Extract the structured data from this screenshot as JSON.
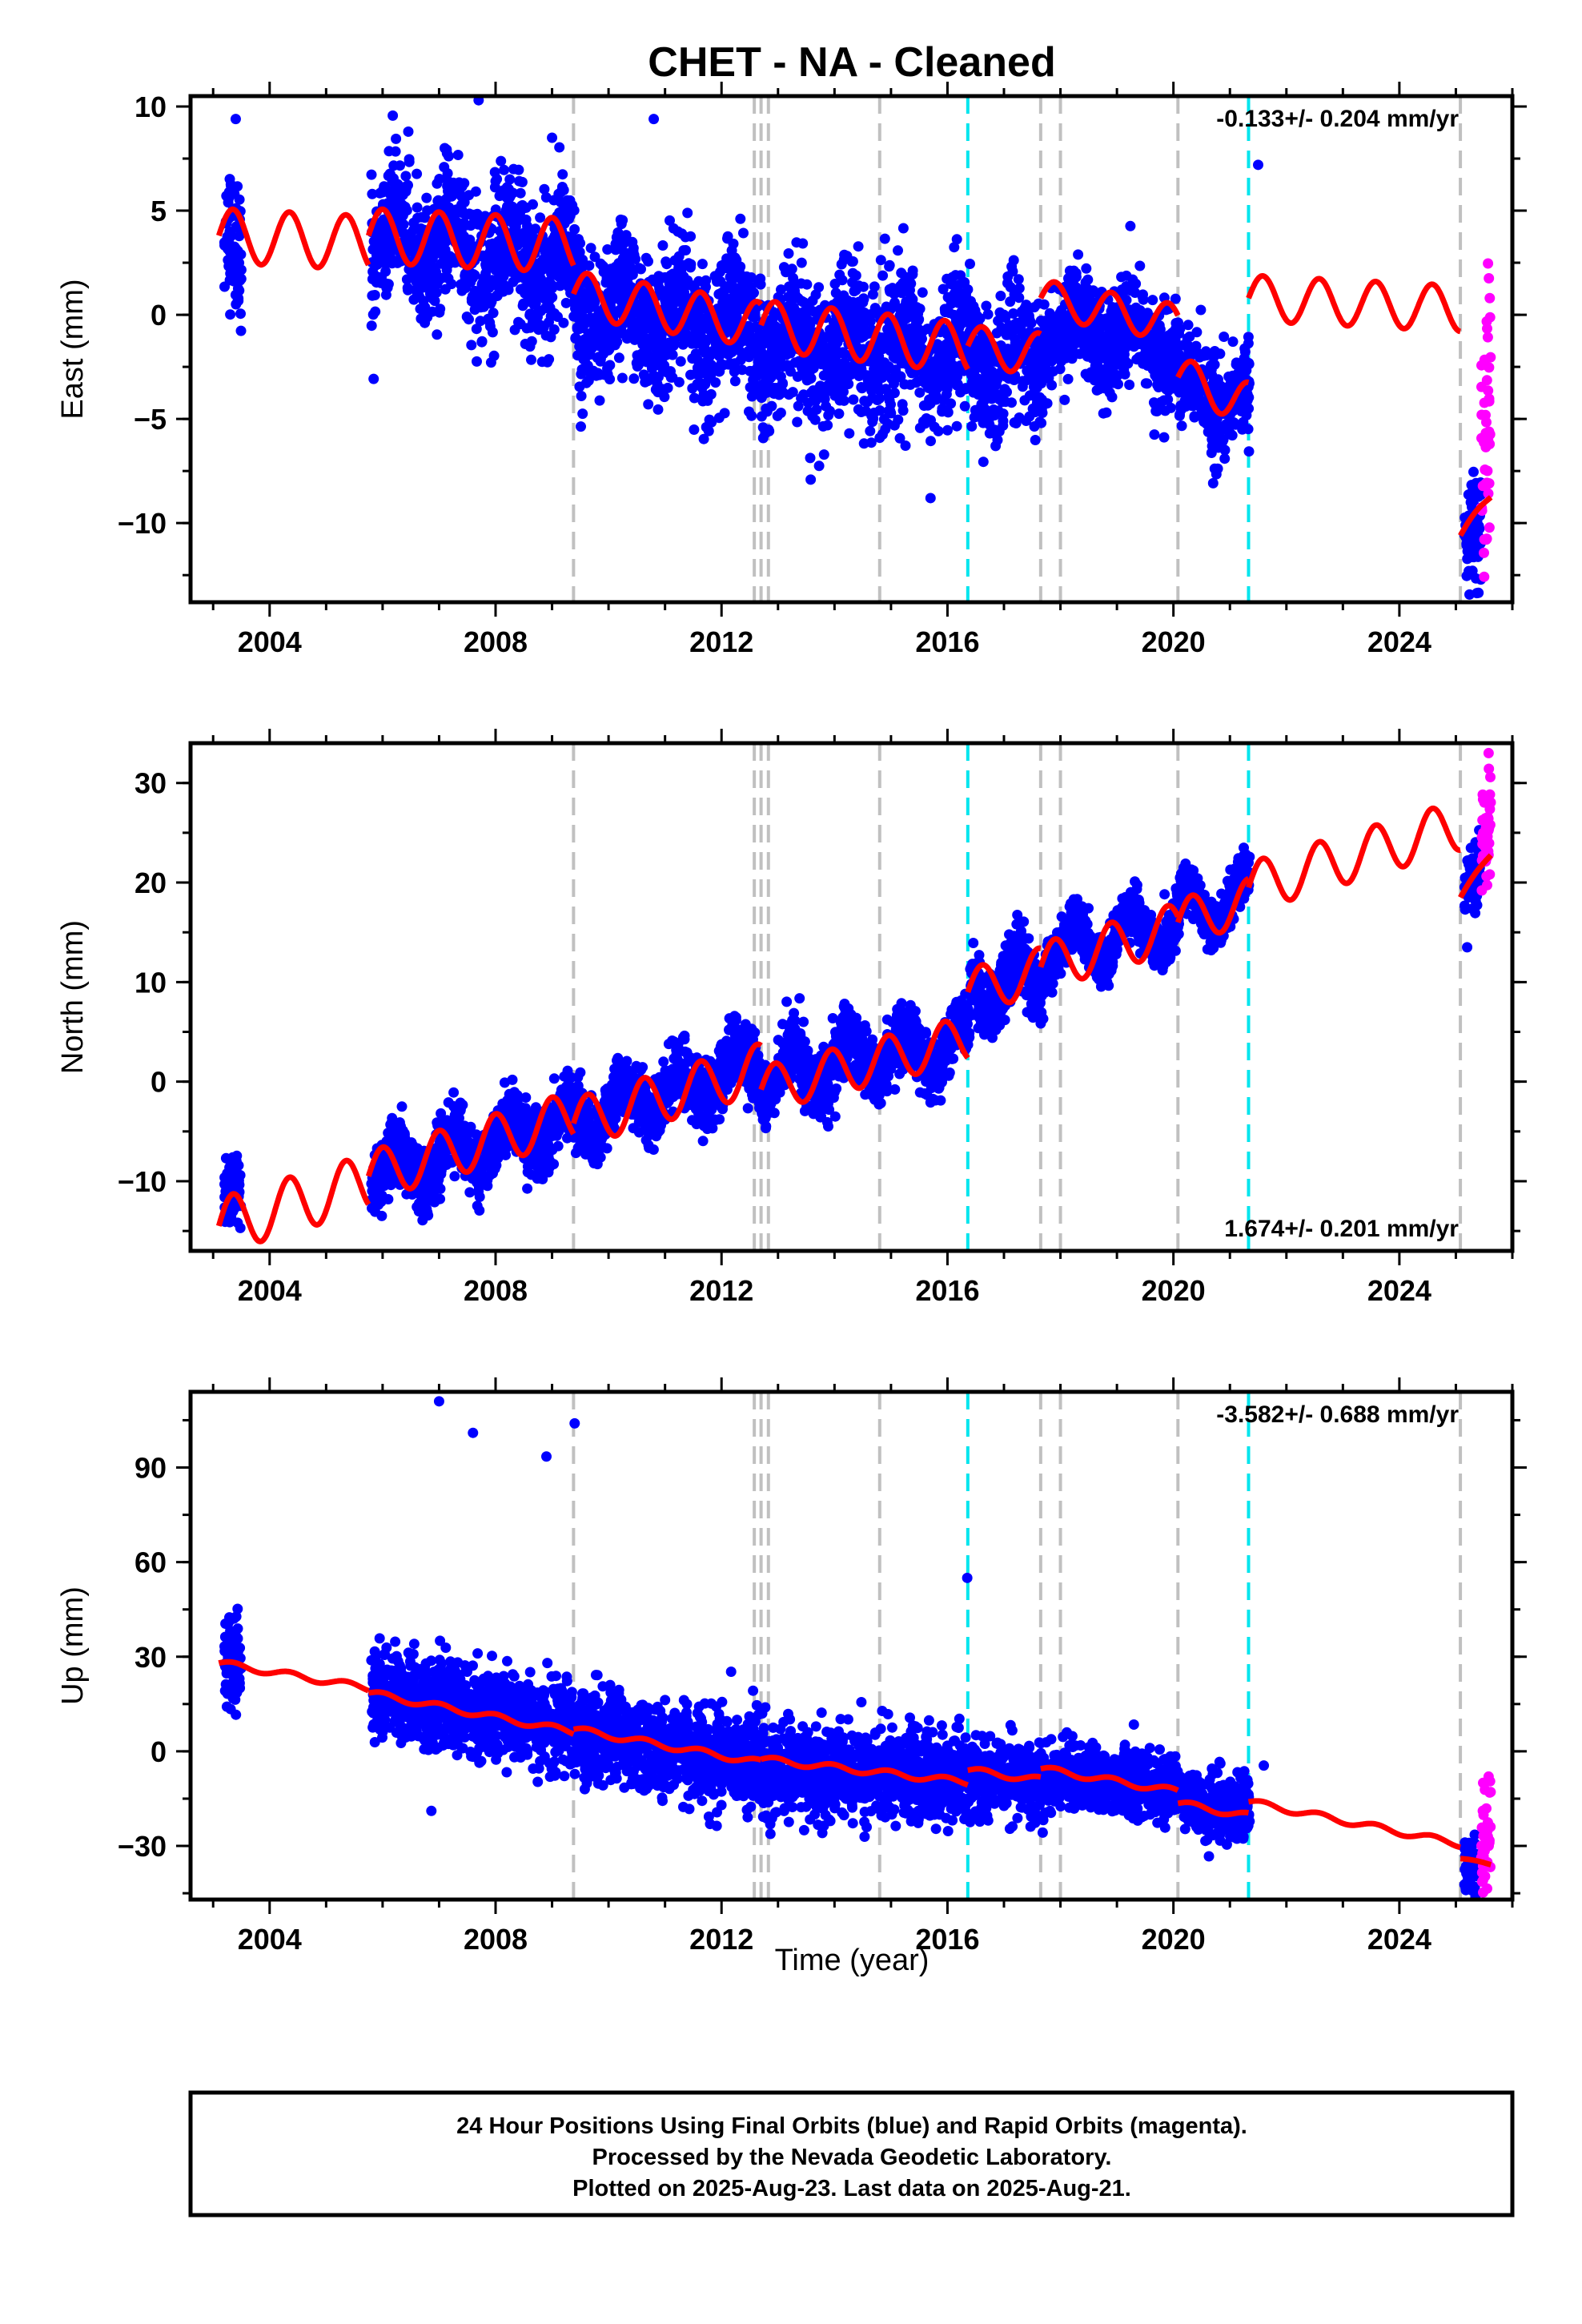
{
  "title": "CHET  - NA - Cleaned",
  "xlabel": "Time (year)",
  "footer": {
    "lines": [
      "24 Hour Positions Using Final Orbits (blue) and Rapid Orbits (magenta).",
      "Processed by the Nevada Geodetic Laboratory.",
      "Plotted on 2025-Aug-23. Last data on 2025-Aug-21."
    ]
  },
  "colors": {
    "final": "#0000ff",
    "rapid": "#ff00ff",
    "model": "#ff0000",
    "equipment_change": "#c0c0c0",
    "earthquake": "#00e5ee"
  },
  "chart_data": [
    {
      "type": "scatter",
      "panel": "east",
      "ylabel": "East (mm)",
      "rate_text": "-0.133+/- 0.204 mm/yr",
      "rate_position": "top-right",
      "xlim": [
        2002.6,
        2026.0
      ],
      "ylim": [
        -13.8,
        10.5
      ],
      "x_ticks": [
        2004,
        2008,
        2012,
        2016,
        2020,
        2024
      ],
      "y_ticks": [
        -10,
        -5,
        0,
        5,
        10
      ],
      "y_tick_labels": [
        "−10",
        "−5",
        "0",
        "5",
        "10"
      ],
      "rate_mm_per_yr": -0.133,
      "series": [
        {
          "name": "Final Orbits",
          "color": "#0000ff",
          "segments": [
            {
              "x": [
                2003.2,
                2003.5
              ],
              "level": [
                3.0,
                2.8
              ],
              "amp": 1.0,
              "spread": 1.6
            },
            {
              "x": [
                2005.8,
                2009.4
              ],
              "level": [
                3.6,
                2.4
              ],
              "amp": 1.3,
              "spread": 1.6
            },
            {
              "x": [
                2009.4,
                2012.7
              ],
              "level": [
                0.4,
                -0.9
              ],
              "amp": 1.1,
              "spread": 1.7
            },
            {
              "x": [
                2012.7,
                2016.4
              ],
              "level": [
                -1.6,
                -1.8
              ],
              "amp": 1.1,
              "spread": 1.7
            },
            {
              "x": [
                2016.4,
                2017.7
              ],
              "level": [
                -2.3,
                -2.2
              ],
              "amp": 1.0,
              "spread": 1.6
            },
            {
              "x": [
                2017.7,
                2020.1
              ],
              "level": [
                -0.6,
                -1.5
              ],
              "amp": 0.9,
              "spread": 1.2
            },
            {
              "x": [
                2020.1,
                2021.35
              ],
              "level": [
                -3.5,
                -4.5
              ],
              "amp": 0.8,
              "spread": 1.2
            },
            {
              "x": [
                2025.15,
                2025.45
              ],
              "level": [
                -11.0,
                -10.0
              ],
              "amp": 0.2,
              "spread": 1.4
            }
          ],
          "outliers": [
            [
              2003.4,
              9.4
            ],
            [
              2007.7,
              10.3
            ],
            [
              2009.0,
              8.5
            ],
            [
              2010.8,
              9.4
            ],
            [
              2015.7,
              -8.8
            ],
            [
              2021.5,
              7.2
            ],
            [
              2007.1,
              8.0
            ]
          ]
        },
        {
          "name": "Rapid Orbits",
          "color": "#ff00ff",
          "segments": [
            {
              "x": [
                2025.45,
                2025.62
              ],
              "level": [
                -8.0,
                -6.0
              ],
              "amp": 0.0,
              "spread": 3.5
            }
          ],
          "outliers": [
            [
              2025.6,
              0.8
            ]
          ]
        }
      ],
      "model": {
        "color": "#ff0000",
        "segments": [
          {
            "x": [
              2003.1,
              2005.75
            ],
            "start": 3.8,
            "rate": -0.133,
            "amp": 1.3
          },
          {
            "x": [
              2005.75,
              2009.38
            ],
            "start": 3.8,
            "rate": -0.133,
            "amp": 1.3
          },
          {
            "x": [
              2009.38,
              2012.7
            ],
            "start": 1.0,
            "rate": -0.45,
            "amp": 1.1
          },
          {
            "x": [
              2012.7,
              2016.36
            ],
            "start": -0.5,
            "rate": -0.3,
            "amp": 1.2
          },
          {
            "x": [
              2016.36,
              2017.65
            ],
            "start": -1.5,
            "rate": -0.3,
            "amp": 1.0
          },
          {
            "x": [
              2017.65,
              2020.08
            ],
            "start": 0.8,
            "rate": -0.5,
            "amp": 0.9
          },
          {
            "x": [
              2020.08,
              2021.33
            ],
            "start": -3.0,
            "rate": -1.0,
            "amp": 1.0
          },
          {
            "x": [
              2021.33,
              2025.08
            ],
            "start": 0.8,
            "rate": -0.133,
            "amp": 1.1
          },
          {
            "x": [
              2025.08,
              2025.62
            ],
            "start": -10.6,
            "rate": 3.5,
            "amp": 0.2
          }
        ]
      },
      "offsets": {
        "equipment": [
          2009.38,
          2012.58,
          2012.7,
          2012.83,
          2014.8,
          2017.65,
          2018.0,
          2020.08,
          2025.08
        ],
        "earthquake": [
          2016.36,
          2021.33
        ]
      }
    },
    {
      "type": "scatter",
      "panel": "north",
      "ylabel": "North (mm)",
      "rate_text": "1.674+/- 0.201 mm/yr",
      "rate_position": "bottom-right",
      "xlim": [
        2002.6,
        2026.0
      ],
      "ylim": [
        -17.0,
        34.0
      ],
      "x_ticks": [
        2004,
        2008,
        2012,
        2016,
        2020,
        2024
      ],
      "y_ticks": [
        -10,
        0,
        10,
        20,
        30
      ],
      "y_tick_labels": [
        "−10",
        "0",
        "10",
        "20",
        "30"
      ],
      "rate_mm_per_yr": 1.674,
      "series": [
        {
          "name": "Final Orbits",
          "color": "#0000ff",
          "segments": [
            {
              "x": [
                2003.2,
                2003.5
              ],
              "level": [
                -12.5,
                -11.5
              ],
              "amp": 1.5,
              "spread": 1.6
            },
            {
              "x": [
                2005.8,
                2009.4
              ],
              "level": [
                -9.5,
                -4.0
              ],
              "amp": 2.0,
              "spread": 1.6
            },
            {
              "x": [
                2009.4,
                2012.7
              ],
              "level": [
                -4.0,
                2.0
              ],
              "amp": 2.0,
              "spread": 1.6
            },
            {
              "x": [
                2012.7,
                2016.4
              ],
              "level": [
                0.5,
                4.0
              ],
              "amp": 2.2,
              "spread": 1.6
            },
            {
              "x": [
                2016.4,
                2017.7
              ],
              "level": [
                9.0,
                10.5
              ],
              "amp": 2.2,
              "spread": 1.6
            },
            {
              "x": [
                2017.7,
                2020.1
              ],
              "level": [
                13.0,
                16.0
              ],
              "amp": 2.4,
              "spread": 1.2
            },
            {
              "x": [
                2020.1,
                2021.35
              ],
              "level": [
                17.0,
                18.5
              ],
              "amp": 2.2,
              "spread": 1.2
            },
            {
              "x": [
                2025.15,
                2025.45
              ],
              "level": [
                19.0,
                21.5
              ],
              "amp": 0.5,
              "spread": 1.6
            }
          ],
          "outliers": [
            [
              2025.2,
              13.5
            ]
          ]
        },
        {
          "name": "Rapid Orbits",
          "color": "#ff00ff",
          "segments": [
            {
              "x": [
                2025.45,
                2025.62
              ],
              "level": [
                24.0,
                27.0
              ],
              "amp": 0.0,
              "spread": 2.6
            }
          ],
          "outliers": [
            [
              2025.58,
              33.0
            ]
          ]
        }
      ],
      "model": {
        "color": "#ff0000",
        "segments": [
          {
            "x": [
              2003.1,
              2005.75
            ],
            "start": -14.5,
            "rate": 1.674,
            "amp": 2.8
          },
          {
            "x": [
              2005.75,
              2009.38
            ],
            "start": -9.5,
            "rate": 1.674,
            "amp": 2.5
          },
          {
            "x": [
              2009.38,
              2012.7
            ],
            "start": -4.2,
            "rate": 1.674,
            "amp": 2.5
          },
          {
            "x": [
              2012.7,
              2016.36
            ],
            "start": -0.8,
            "rate": 1.4,
            "amp": 2.3
          },
          {
            "x": [
              2016.36,
              2017.65
            ],
            "start": 9.0,
            "rate": 1.674,
            "amp": 2.3
          },
          {
            "x": [
              2017.65,
              2020.08
            ],
            "start": 11.5,
            "rate": 1.674,
            "amp": 2.4
          },
          {
            "x": [
              2020.08,
              2021.33
            ],
            "start": 16.0,
            "rate": 1.674,
            "amp": 2.3
          },
          {
            "x": [
              2021.33,
              2025.08
            ],
            "start": 19.5,
            "rate": 1.674,
            "amp": 2.5
          },
          {
            "x": [
              2025.08,
              2025.62
            ],
            "start": 18.5,
            "rate": 8.0,
            "amp": 0.3
          }
        ]
      },
      "offsets": {
        "equipment": [
          2009.38,
          2012.58,
          2012.7,
          2012.83,
          2014.8,
          2017.65,
          2018.0,
          2020.08,
          2025.08
        ],
        "earthquake": [
          2016.36,
          2021.33
        ]
      }
    },
    {
      "type": "scatter",
      "panel": "up",
      "ylabel": "Up (mm)",
      "rate_text": "-3.582+/- 0.688 mm/yr",
      "rate_position": "top-right",
      "xlim": [
        2002.6,
        2026.0
      ],
      "ylim": [
        -47.0,
        114.0
      ],
      "x_ticks": [
        2004,
        2008,
        2012,
        2016,
        2020,
        2024
      ],
      "y_ticks": [
        -30,
        0,
        30,
        60,
        90
      ],
      "y_tick_labels": [
        "−30",
        "0",
        "30",
        "60",
        "90"
      ],
      "rate_mm_per_yr": -3.582,
      "series": [
        {
          "name": "Final Orbits",
          "color": "#0000ff",
          "segments": [
            {
              "x": [
                2003.2,
                2003.5
              ],
              "level": [
                29.0,
                27.0
              ],
              "amp": 0.5,
              "spread": 6.0
            },
            {
              "x": [
                2005.8,
                2009.4
              ],
              "level": [
                19.0,
                7.0
              ],
              "amp": 1.0,
              "spread": 7.0
            },
            {
              "x": [
                2009.4,
                2012.7
              ],
              "level": [
                6.0,
                -4.0
              ],
              "amp": 1.0,
              "spread": 7.0
            },
            {
              "x": [
                2012.7,
                2016.4
              ],
              "level": [
                -4.0,
                -10.0
              ],
              "amp": 1.0,
              "spread": 7.0
            },
            {
              "x": [
                2016.4,
                2017.7
              ],
              "level": [
                -8.0,
                -10.0
              ],
              "amp": 1.0,
              "spread": 6.0
            },
            {
              "x": [
                2017.7,
                2020.1
              ],
              "level": [
                -7.0,
                -12.0
              ],
              "amp": 0.8,
              "spread": 5.0
            },
            {
              "x": [
                2020.1,
                2021.35
              ],
              "level": [
                -16.0,
                -20.0
              ],
              "amp": 0.8,
              "spread": 5.0
            },
            {
              "x": [
                2025.15,
                2025.45
              ],
              "level": [
                -36.0,
                -37.0
              ],
              "amp": 0.2,
              "spread": 4.0
            }
          ],
          "outliers": [
            [
              2007.0,
              111.0
            ],
            [
              2007.6,
              101.0
            ],
            [
              2008.9,
              93.5
            ],
            [
              2009.4,
              104.0
            ],
            [
              2016.35,
              55.0
            ],
            [
              2021.6,
              -4.5
            ],
            [
              2019.3,
              8.5
            ]
          ]
        },
        {
          "name": "Rapid Orbits",
          "color": "#ff00ff",
          "segments": [
            {
              "x": [
                2025.45,
                2025.62
              ],
              "level": [
                -30.0,
                -25.0
              ],
              "amp": 0.0,
              "spread": 9.0
            }
          ],
          "outliers": [
            [
              2025.58,
              -8.0
            ]
          ]
        }
      ],
      "model": {
        "color": "#ff0000",
        "segments": [
          {
            "x": [
              2003.1,
              2005.75
            ],
            "start": 28.0,
            "rate": -3.0,
            "amp": 1.0
          },
          {
            "x": [
              2005.75,
              2009.38
            ],
            "start": 18.5,
            "rate": -3.4,
            "amp": 1.0
          },
          {
            "x": [
              2009.38,
              2012.7
            ],
            "start": 7.0,
            "rate": -3.2,
            "amp": 1.0
          },
          {
            "x": [
              2012.7,
              2016.36
            ],
            "start": -2.5,
            "rate": -2.0,
            "amp": 1.0
          },
          {
            "x": [
              2016.36,
              2017.65
            ],
            "start": -6.0,
            "rate": -2.4,
            "amp": 1.0
          },
          {
            "x": [
              2017.65,
              2020.08
            ],
            "start": -5.5,
            "rate": -3.0,
            "amp": 1.0
          },
          {
            "x": [
              2020.08,
              2021.33
            ],
            "start": -16.5,
            "rate": -3.2,
            "amp": 1.0
          },
          {
            "x": [
              2021.33,
              2025.08
            ],
            "start": -16.0,
            "rate": -3.582,
            "amp": 1.0
          },
          {
            "x": [
              2025.08,
              2025.62
            ],
            "start": -34.0,
            "rate": -3.5,
            "amp": 0.3
          }
        ]
      },
      "offsets": {
        "equipment": [
          2009.38,
          2012.58,
          2012.7,
          2012.83,
          2014.8,
          2017.65,
          2018.0,
          2020.08,
          2025.08
        ],
        "earthquake": [
          2016.36,
          2021.33
        ]
      }
    }
  ]
}
